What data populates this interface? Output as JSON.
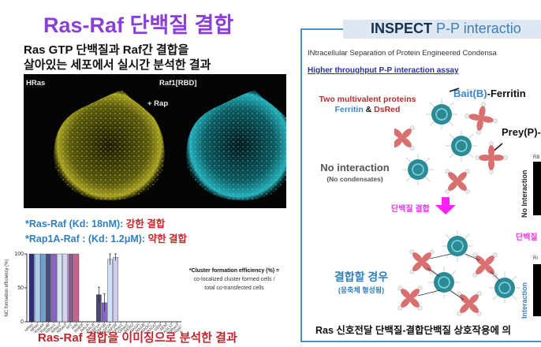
{
  "left_panel": {
    "title": "Ras-Raf 단백질 결합",
    "subtitle_line1": "Ras GTP 단백질과 Raf간 결합을",
    "subtitle_line2": "살아있는 세포에서 실시간 분석한 결과",
    "microscopy": {
      "left_label": "HRas",
      "right_label": "Raf1[RBD]",
      "center_label": "+ Rap",
      "left_color": "#d8d030",
      "right_color": "#38c8d0"
    },
    "kd_lines": [
      {
        "prefix": "*Ras-Raf (Kd: 18nM): ",
        "result": "강한 결합"
      },
      {
        "prefix": "*Rap1A-Raf : (Kd: 1.2μM): ",
        "result": "약한 결합"
      }
    ],
    "note": {
      "title": "*Cluster formation efficiency (%) =",
      "line1": "co-localized cluster formed cells /",
      "line2": "total co-transfected cells"
    },
    "bottom_caption": "Ras-Raf 결합을 이미징으로 분석한 결과"
  },
  "chart_data": {
    "type": "bar",
    "title": "",
    "xlabel": "",
    "ylabel": "NC formation efficiency (%)",
    "ylim": [
      0,
      100
    ],
    "yticks": [
      0,
      50,
      100
    ],
    "grid": false,
    "categories": [
      "HRas",
      "NRas",
      "KRas4A",
      "KRas4B",
      "RRas1",
      "RRas2",
      "RRas3",
      "RIT",
      "RIN",
      "RHEB",
      "RALA",
      "RALB",
      "RAP1A",
      "RAP1B",
      "RASP2A",
      "RAP2B",
      "NKIRas1",
      "NKIRas2",
      "RERG",
      "RAGA",
      "RAGB",
      "RAGC",
      "RAGD",
      "GEM",
      "REM",
      "RASL12",
      "DIRas3",
      "RasD1",
      "RasD2",
      "DIRas2"
    ],
    "values": [
      100,
      100,
      100,
      100,
      100,
      100,
      100,
      100,
      100,
      0,
      0,
      0,
      40,
      28,
      92,
      95,
      0,
      0,
      0,
      0,
      0,
      0,
      0,
      0,
      0,
      0,
      0,
      0,
      0,
      0
    ],
    "errors": [
      0,
      0,
      0,
      0,
      0,
      0,
      0,
      0,
      0,
      0,
      0,
      0,
      11,
      13,
      8,
      5,
      0,
      0,
      0,
      0,
      0,
      0,
      0,
      0,
      0,
      0,
      0,
      0,
      0,
      0
    ],
    "colors": [
      "#2b2f7a",
      "#a8cdf0",
      "#6a9fcf",
      "#4a4a7a",
      "#8a62c8",
      "#d5e4f5",
      "#d8d2f2",
      "#8c5a8c",
      "#c8608a",
      "#ccc",
      "#ccc",
      "#ccc",
      "#4a4a7a",
      "#8a62c8",
      "#cfe2f6",
      "#d2ccf3",
      "#ccc",
      "#ccc",
      "#ccc",
      "#ccc",
      "#ccc",
      "#ccc",
      "#ccc",
      "#ccc",
      "#ccc",
      "#ccc",
      "#ccc",
      "#ccc",
      "#ccc",
      "#ccc"
    ]
  },
  "right_panel": {
    "header_bold": "INSPECT",
    "header_rest": " P-P interactio",
    "acronym_line": "INtracellular Separation of Protein Engineered Condensa",
    "assay_line": "Higher throughput P-P interaction assay",
    "two_proteins_line1": "Two multivalent proteins",
    "ferritin": "Ferritin",
    "amp": " & ",
    "dsred": "DsRed",
    "bait_colored": "Bait(B)",
    "bait_rest": "-Ferritin",
    "prey": "Prey(P)-",
    "no_interaction": "No interaction",
    "no_condensates": "(No condensates)",
    "binding_label": "단백질 결합",
    "binding_label_cut": "단백질",
    "combine_main": "결합할 경우",
    "combine_sub": "(응축체 형성됨)",
    "side_no_interaction": "No Interaction",
    "side_interaction": "Interaction",
    "side_label_top": "RB",
    "side_label_bottom": "RI",
    "bottom_caption": "Ras 신호전달 단백질-결합단백질 상호작용에 의",
    "colors": {
      "border": "#4f8fbf",
      "ferritin": "#2a8a96",
      "dsred": "#d87070",
      "magenta": "#ff20ff"
    }
  }
}
